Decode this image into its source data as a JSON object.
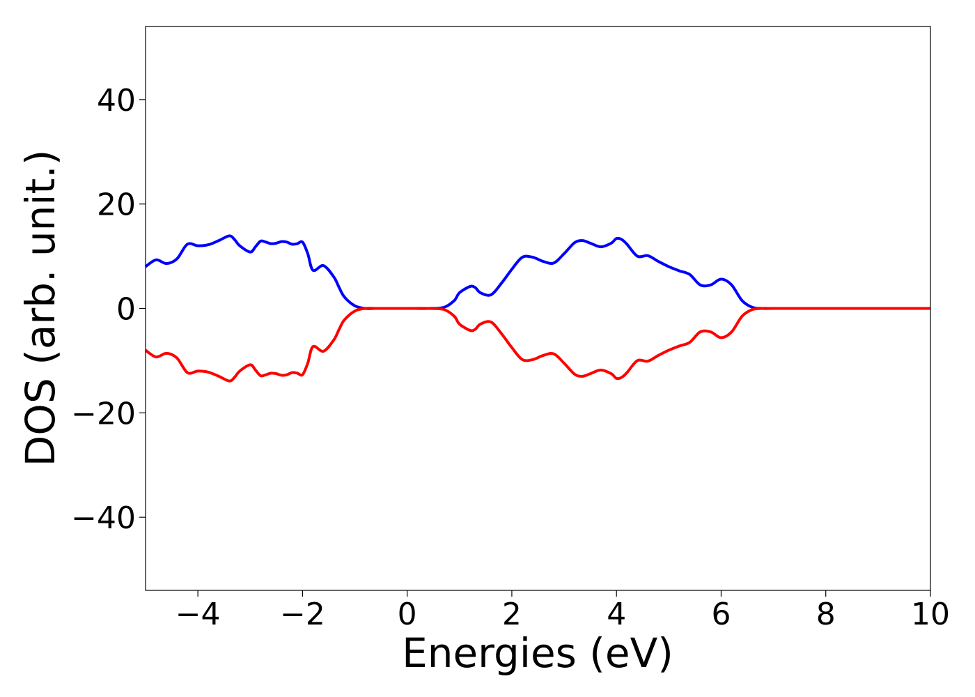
{
  "chart_data": {
    "type": "line",
    "title": "",
    "xlabel": "Energies (eV)",
    "ylabel": "DOS (arb. unit.)",
    "xlim": [
      -5,
      10
    ],
    "ylim": [
      -54,
      54
    ],
    "xticks": [
      -4,
      -2,
      0,
      2,
      4,
      6,
      8,
      10
    ],
    "xtick_labels": [
      "−4",
      "−2",
      "0",
      "2",
      "4",
      "6",
      "8",
      "10"
    ],
    "yticks": [
      -40,
      -20,
      0,
      20,
      40
    ],
    "ytick_labels": [
      "−40",
      "−20",
      "0",
      "20",
      "40"
    ],
    "grid": false,
    "legend": "none",
    "series": [
      {
        "color": "#0000ff",
        "x": [
          -5.0,
          -4.8,
          -4.6,
          -4.4,
          -4.2,
          -4.0,
          -3.8,
          -3.6,
          -3.4,
          -3.3,
          -3.2,
          -3.0,
          -2.9,
          -2.8,
          -2.7,
          -2.6,
          -2.5,
          -2.4,
          -2.3,
          -2.2,
          -2.1,
          -2.0,
          -1.9,
          -1.8,
          -1.6,
          -1.4,
          -1.3,
          -1.2,
          -1.0,
          -0.8,
          -0.6,
          -0.4,
          0.0,
          0.4,
          0.7,
          0.9,
          1.0,
          1.2,
          1.3,
          1.4,
          1.6,
          1.8,
          2.0,
          2.2,
          2.4,
          2.6,
          2.8,
          3.0,
          3.2,
          3.35,
          3.5,
          3.7,
          3.9,
          4.0,
          4.1,
          4.2,
          4.4,
          4.6,
          4.8,
          5.0,
          5.2,
          5.4,
          5.6,
          5.8,
          6.0,
          6.2,
          6.4,
          6.6,
          6.8,
          7.0,
          8.0,
          9.0,
          10.0
        ],
        "y": [
          8.0,
          9.3,
          8.6,
          9.5,
          12.3,
          12.0,
          12.2,
          13.0,
          13.9,
          13.2,
          12.0,
          10.8,
          11.8,
          12.9,
          12.7,
          12.4,
          12.5,
          12.8,
          12.7,
          12.3,
          12.4,
          12.7,
          10.5,
          7.3,
          8.2,
          6.0,
          4.0,
          2.2,
          0.5,
          0.0,
          0.0,
          0.0,
          0.0,
          0.0,
          0.2,
          1.5,
          3.0,
          4.2,
          4.0,
          3.0,
          2.6,
          4.8,
          7.5,
          9.8,
          9.8,
          9.0,
          8.7,
          10.5,
          12.6,
          13.0,
          12.5,
          11.8,
          12.5,
          13.4,
          13.2,
          12.3,
          10.0,
          10.1,
          9.0,
          8.0,
          7.2,
          6.5,
          4.5,
          4.5,
          5.6,
          4.5,
          1.5,
          0.2,
          0.0,
          0.0,
          0.0,
          0.0,
          0.0
        ]
      },
      {
        "color": "#ff0000",
        "x": [
          -5.0,
          -4.8,
          -4.6,
          -4.4,
          -4.2,
          -4.0,
          -3.8,
          -3.6,
          -3.4,
          -3.3,
          -3.2,
          -3.0,
          -2.9,
          -2.8,
          -2.7,
          -2.6,
          -2.5,
          -2.4,
          -2.3,
          -2.2,
          -2.1,
          -2.0,
          -1.9,
          -1.8,
          -1.6,
          -1.4,
          -1.3,
          -1.2,
          -1.0,
          -0.8,
          -0.6,
          -0.4,
          0.0,
          0.4,
          0.7,
          0.9,
          1.0,
          1.2,
          1.3,
          1.4,
          1.6,
          1.8,
          2.0,
          2.2,
          2.4,
          2.6,
          2.8,
          3.0,
          3.2,
          3.35,
          3.5,
          3.7,
          3.9,
          4.0,
          4.1,
          4.2,
          4.4,
          4.6,
          4.8,
          5.0,
          5.2,
          5.4,
          5.6,
          5.8,
          6.0,
          6.2,
          6.4,
          6.6,
          6.8,
          7.0,
          8.0,
          9.0,
          10.0
        ],
        "y": [
          -8.0,
          -9.3,
          -8.6,
          -9.5,
          -12.3,
          -12.0,
          -12.2,
          -13.0,
          -13.9,
          -13.2,
          -12.0,
          -10.8,
          -11.8,
          -12.9,
          -12.7,
          -12.4,
          -12.5,
          -12.8,
          -12.7,
          -12.3,
          -12.4,
          -12.7,
          -10.5,
          -7.3,
          -8.2,
          -6.0,
          -4.0,
          -2.2,
          -0.5,
          0.0,
          0.0,
          0.0,
          0.0,
          0.0,
          -0.2,
          -1.5,
          -3.0,
          -4.2,
          -4.0,
          -3.0,
          -2.6,
          -4.8,
          -7.5,
          -9.8,
          -9.8,
          -9.0,
          -8.7,
          -10.5,
          -12.6,
          -13.0,
          -12.5,
          -11.8,
          -12.5,
          -13.4,
          -13.2,
          -12.3,
          -10.0,
          -10.1,
          -9.0,
          -8.0,
          -7.2,
          -6.5,
          -4.5,
          -4.5,
          -5.6,
          -4.5,
          -1.5,
          -0.2,
          0.0,
          0.0,
          0.0,
          0.0,
          0.0
        ]
      }
    ]
  }
}
